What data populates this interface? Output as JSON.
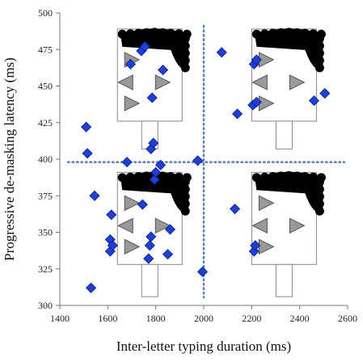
{
  "chart_data": {
    "type": "scatter",
    "xlabel": "Inter-letter typing duration (ms)",
    "ylabel": "Progressive de-masking latency (ms)",
    "xlim": [
      1400,
      2600
    ],
    "ylim": [
      300,
      500
    ],
    "xticks": [
      1400,
      1600,
      1800,
      2000,
      2200,
      2400,
      2600
    ],
    "yticks": [
      300,
      325,
      350,
      375,
      400,
      425,
      450,
      475,
      500
    ],
    "grid": false,
    "reference_lines": {
      "x": 2000,
      "y": 398
    },
    "marker": {
      "shape": "diamond",
      "color": "#1f3fd6"
    },
    "series": [
      {
        "points": [
          {
            "x": 1510,
            "y": 422
          },
          {
            "x": 1515,
            "y": 404
          },
          {
            "x": 1545,
            "y": 375
          },
          {
            "x": 1530,
            "y": 312
          },
          {
            "x": 1610,
            "y": 345
          },
          {
            "x": 1615,
            "y": 362
          },
          {
            "x": 1610,
            "y": 337
          },
          {
            "x": 1620,
            "y": 341
          },
          {
            "x": 1680,
            "y": 398
          },
          {
            "x": 1695,
            "y": 465
          },
          {
            "x": 1740,
            "y": 474
          },
          {
            "x": 1755,
            "y": 477
          },
          {
            "x": 1745,
            "y": 369
          },
          {
            "x": 1770,
            "y": 332
          },
          {
            "x": 1775,
            "y": 341
          },
          {
            "x": 1780,
            "y": 347
          },
          {
            "x": 1785,
            "y": 442
          },
          {
            "x": 1780,
            "y": 407
          },
          {
            "x": 1790,
            "y": 411
          },
          {
            "x": 1795,
            "y": 386
          },
          {
            "x": 1800,
            "y": 391
          },
          {
            "x": 1820,
            "y": 396
          },
          {
            "x": 1830,
            "y": 461
          },
          {
            "x": 1850,
            "y": 335
          },
          {
            "x": 1860,
            "y": 352
          },
          {
            "x": 1975,
            "y": 399
          },
          {
            "x": 1995,
            "y": 323
          },
          {
            "x": 2075,
            "y": 473
          },
          {
            "x": 2140,
            "y": 431
          },
          {
            "x": 2130,
            "y": 366
          },
          {
            "x": 2210,
            "y": 465
          },
          {
            "x": 2220,
            "y": 468
          },
          {
            "x": 2205,
            "y": 437
          },
          {
            "x": 2220,
            "y": 439
          },
          {
            "x": 2210,
            "y": 337
          },
          {
            "x": 2215,
            "y": 341
          },
          {
            "x": 2460,
            "y": 440
          },
          {
            "x": 2505,
            "y": 445
          }
        ]
      }
    ],
    "quadrant_illustrations": [
      {
        "name": "face-top-left",
        "cx": 1775,
        "top": 489,
        "stem_top": 426,
        "bottom": 407
      },
      {
        "name": "face-top-right",
        "cx": 2335,
        "top": 489,
        "stem_top": 426,
        "bottom": 407
      },
      {
        "name": "face-bottom-left",
        "cx": 1775,
        "top": 391,
        "stem_top": 328,
        "bottom": 306
      },
      {
        "name": "face-bottom-right",
        "cx": 2335,
        "top": 391,
        "stem_top": 328,
        "bottom": 306
      }
    ]
  }
}
